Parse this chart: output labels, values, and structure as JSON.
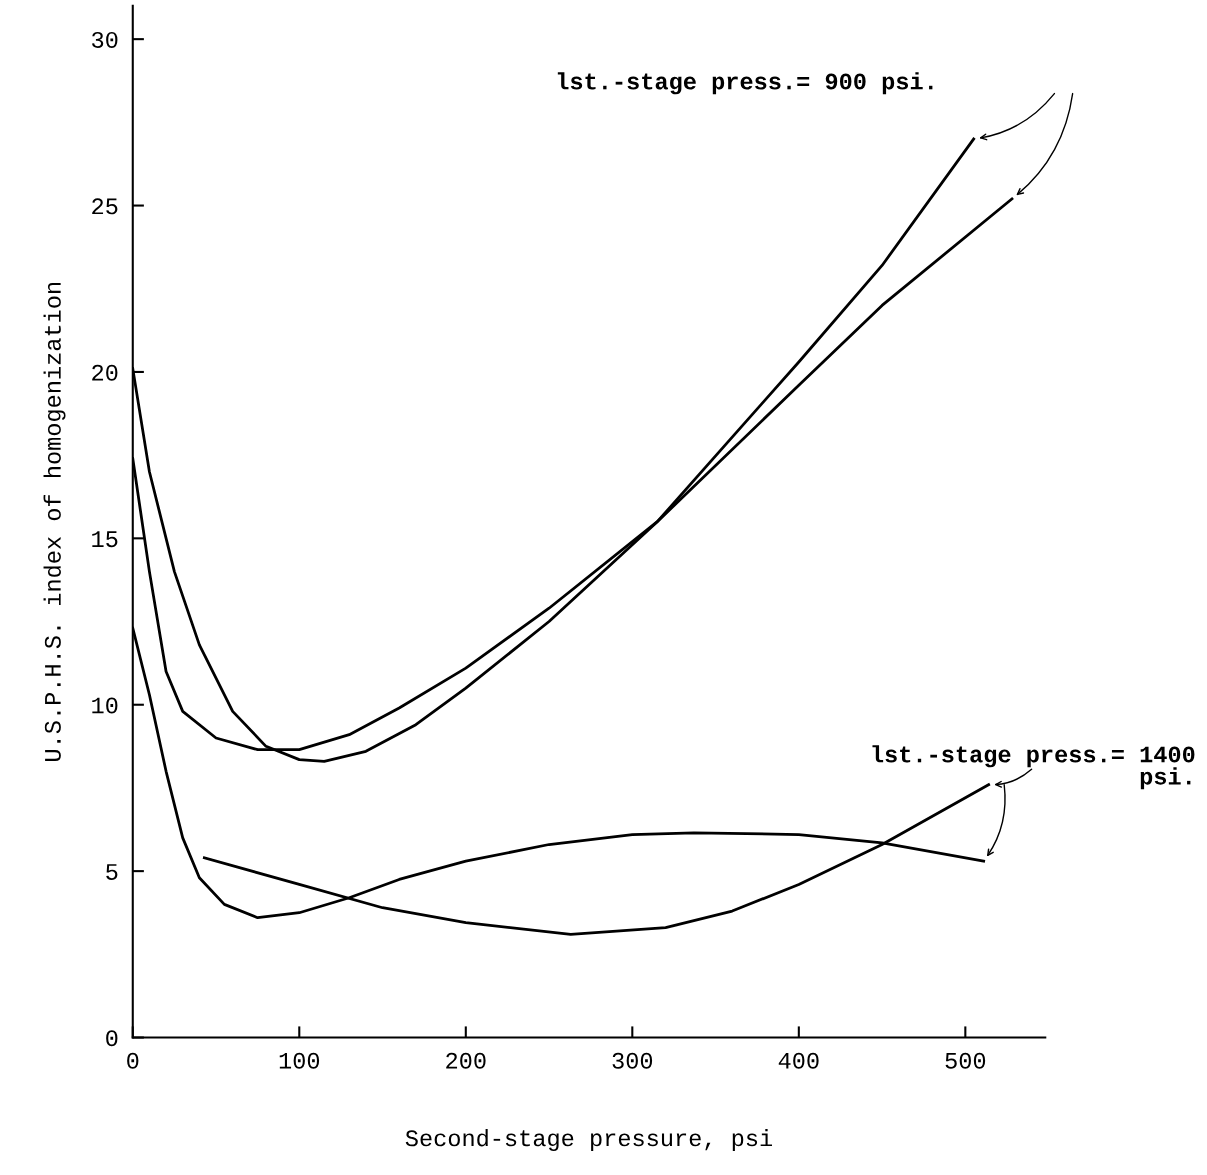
{
  "chart_data": {
    "type": "line",
    "xlabel": "Second-stage pressure, psi",
    "ylabel": "U.S.P.H.S. index of homogenization",
    "xlim": [
      0,
      548
    ],
    "ylim": [
      0,
      31
    ],
    "xticks": [
      0,
      100,
      200,
      300,
      400,
      500
    ],
    "yticks": [
      0,
      5,
      10,
      15,
      20,
      25,
      30
    ],
    "grid": false,
    "legend": false,
    "marker": "none",
    "line_style": "solid",
    "series": [
      {
        "color": "#000000",
        "x": [
          0,
          10,
          25,
          40,
          60,
          80,
          100,
          115,
          140,
          170,
          200,
          250,
          315,
          400,
          450,
          505
        ],
        "values": [
          20.1,
          17,
          14,
          11.8,
          9.8,
          8.75,
          8.35,
          8.3,
          8.6,
          9.4,
          10.5,
          12.5,
          15.5,
          20.3,
          23.2,
          27.0
        ]
      },
      {
        "color": "#000000",
        "x": [
          0,
          10,
          20,
          30,
          50,
          75,
          100,
          130,
          160,
          200,
          250,
          315,
          400,
          450,
          528
        ],
        "values": [
          17.4,
          14,
          11,
          9.8,
          9.0,
          8.65,
          8.65,
          9.1,
          9.9,
          11.1,
          12.9,
          15.5,
          19.6,
          22.0,
          25.2
        ]
      },
      {
        "color": "#000000",
        "x": [
          0,
          10,
          20,
          30,
          40,
          55,
          75,
          100,
          130,
          160,
          200,
          250,
          300,
          337,
          400,
          450,
          511
        ],
        "values": [
          12.3,
          10.3,
          8.0,
          6.0,
          4.8,
          4.0,
          3.6,
          3.75,
          4.2,
          4.75,
          5.3,
          5.8,
          6.1,
          6.15,
          6.1,
          5.85,
          5.3
        ]
      },
      {
        "color": "#000000",
        "x": [
          43,
          100,
          150,
          200,
          263,
          320,
          360,
          400,
          450,
          514
        ],
        "values": [
          5.4,
          4.6,
          3.9,
          3.45,
          3.1,
          3.3,
          3.8,
          4.6,
          5.8,
          7.6
        ]
      }
    ],
    "annotations": [
      "lst.-stage press.= 900 psi.",
      "lst.-stage press.= 1400\npsi."
    ]
  }
}
